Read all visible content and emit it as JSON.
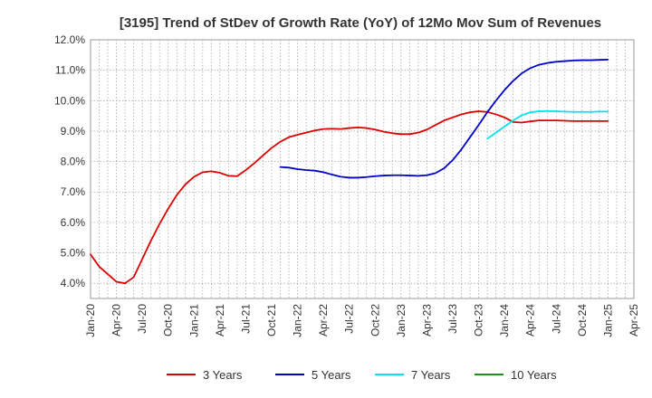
{
  "chart_data": {
    "type": "line",
    "title": "[3195]  Trend of StDev of Growth Rate (YoY) of 12Mo Mov Sum of Revenues",
    "xlabel": "",
    "ylabel": "",
    "ylim": [
      3.5,
      12.0
    ],
    "yticks": [
      4.0,
      5.0,
      6.0,
      7.0,
      8.0,
      9.0,
      10.0,
      11.0,
      12.0
    ],
    "ytick_labels": [
      "4.0%",
      "5.0%",
      "6.0%",
      "7.0%",
      "8.0%",
      "9.0%",
      "10.0%",
      "11.0%",
      "12.0%"
    ],
    "xtick_labels": [
      "Jan-20",
      "Apr-20",
      "Jul-20",
      "Oct-20",
      "Jan-21",
      "Apr-21",
      "Jul-21",
      "Oct-21",
      "Jan-22",
      "Apr-22",
      "Jul-22",
      "Oct-22",
      "Jan-23",
      "Apr-23",
      "Jul-23",
      "Oct-23",
      "Jan-24",
      "Apr-24",
      "Jul-24",
      "Oct-24",
      "Jan-25",
      "Apr-25"
    ],
    "grid": true,
    "legend_position": "bottom",
    "x_months_start": "Jan-20",
    "series": [
      {
        "name": "3 Years",
        "color": "#dd0000",
        "start_index": 0,
        "values": [
          4.95,
          4.55,
          4.3,
          4.05,
          4.0,
          4.2,
          4.8,
          5.4,
          5.95,
          6.45,
          6.9,
          7.25,
          7.5,
          7.65,
          7.68,
          7.63,
          7.53,
          7.52,
          7.72,
          7.95,
          8.2,
          8.45,
          8.65,
          8.8,
          8.88,
          8.95,
          9.02,
          9.07,
          9.08,
          9.07,
          9.1,
          9.12,
          9.1,
          9.05,
          8.98,
          8.93,
          8.9,
          8.9,
          8.95,
          9.05,
          9.2,
          9.35,
          9.45,
          9.55,
          9.62,
          9.65,
          9.63,
          9.55,
          9.45,
          9.3,
          9.28,
          9.32,
          9.35,
          9.35,
          9.35,
          9.34,
          9.33,
          9.33,
          9.33,
          9.33,
          9.33
        ]
      },
      {
        "name": "5 Years",
        "color": "#0000cc",
        "start_index": 22,
        "values": [
          7.82,
          7.8,
          7.75,
          7.72,
          7.7,
          7.65,
          7.57,
          7.5,
          7.47,
          7.47,
          7.49,
          7.52,
          7.54,
          7.55,
          7.55,
          7.54,
          7.53,
          7.55,
          7.62,
          7.78,
          8.05,
          8.4,
          8.8,
          9.2,
          9.62,
          10.0,
          10.35,
          10.65,
          10.9,
          11.07,
          11.18,
          11.24,
          11.28,
          11.3,
          11.32,
          11.33,
          11.33,
          11.34,
          11.35
        ]
      },
      {
        "name": "7 Years",
        "color": "#00e5ee",
        "start_index": 46,
        "values": [
          8.75,
          8.95,
          9.15,
          9.35,
          9.52,
          9.62,
          9.65,
          9.66,
          9.65,
          9.64,
          9.63,
          9.63,
          9.63,
          9.64,
          9.64
        ]
      },
      {
        "name": "10 Years",
        "color": "#228b22",
        "start_index": 0,
        "values": []
      }
    ]
  }
}
